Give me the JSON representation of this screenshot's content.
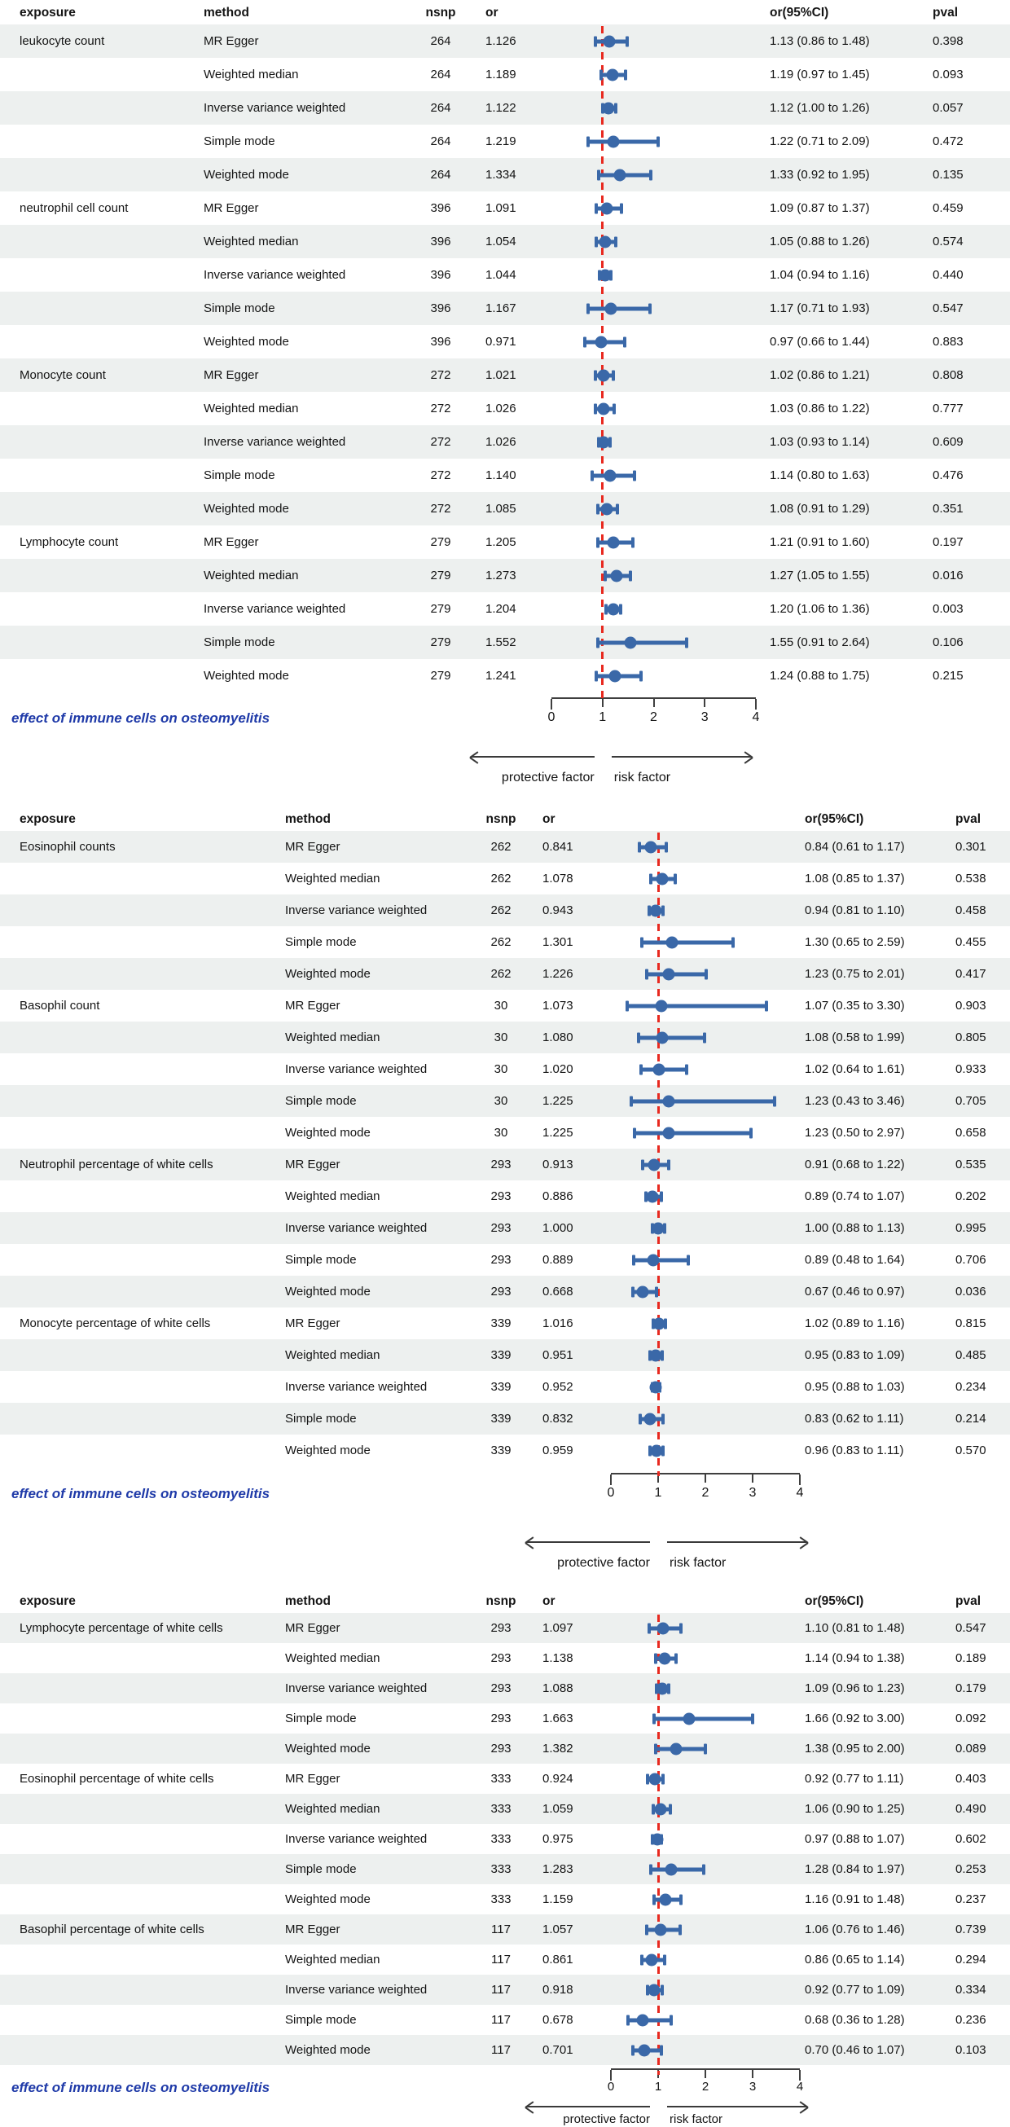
{
  "colors": {
    "marker_blue": "#3a68a8",
    "reference_line_red": "#e8291f",
    "row_stripe_gray": "#edf0ef",
    "footer_text_blue": "#1f3aa8"
  },
  "chart_data": {
    "type": "forest",
    "or_axis": {
      "min": 0,
      "max": 4,
      "reference_line": 1
    },
    "panels": [
      {
        "header": {
          "exposure": "exposure",
          "method": "method",
          "nsnp": "nsnp",
          "or": "or",
          "orci": "or(95%CI)",
          "pval": "pval"
        },
        "axis": {
          "ticks": [
            "0",
            "1",
            "2",
            "3",
            "4"
          ],
          "left_label": "protective factor",
          "right_label": "risk factor"
        },
        "footer_label": "effect of immune cells on osteomyelitis",
        "rows": [
          {
            "exposure": "leukocyte count",
            "method": "MR Egger",
            "nsnp": "264",
            "or": "1.126",
            "ci": [
              0.86,
              1.48
            ],
            "orci": "1.13 (0.86 to 1.48)",
            "pval": "0.398"
          },
          {
            "exposure": "",
            "method": "Weighted median",
            "nsnp": "264",
            "or": "1.189",
            "ci": [
              0.97,
              1.45
            ],
            "orci": "1.19 (0.97 to 1.45)",
            "pval": "0.093"
          },
          {
            "exposure": "",
            "method": "Inverse variance weighted",
            "nsnp": "264",
            "or": "1.122",
            "ci": [
              1.0,
              1.26
            ],
            "orci": "1.12 (1.00 to 1.26)",
            "pval": "0.057"
          },
          {
            "exposure": "",
            "method": "Simple mode",
            "nsnp": "264",
            "or": "1.219",
            "ci": [
              0.71,
              2.09
            ],
            "orci": "1.22 (0.71 to 2.09)",
            "pval": "0.472"
          },
          {
            "exposure": "",
            "method": "Weighted mode",
            "nsnp": "264",
            "or": "1.334",
            "ci": [
              0.92,
              1.95
            ],
            "orci": "1.33 (0.92 to 1.95)",
            "pval": "0.135"
          },
          {
            "exposure": "neutrophil cell count",
            "method": "MR Egger",
            "nsnp": "396",
            "or": "1.091",
            "ci": [
              0.87,
              1.37
            ],
            "orci": "1.09 (0.87 to 1.37)",
            "pval": "0.459"
          },
          {
            "exposure": "",
            "method": "Weighted median",
            "nsnp": "396",
            "or": "1.054",
            "ci": [
              0.88,
              1.26
            ],
            "orci": "1.05 (0.88 to 1.26)",
            "pval": "0.574"
          },
          {
            "exposure": "",
            "method": "Inverse variance weighted",
            "nsnp": "396",
            "or": "1.044",
            "ci": [
              0.94,
              1.16
            ],
            "orci": "1.04 (0.94 to 1.16)",
            "pval": "0.440"
          },
          {
            "exposure": "",
            "method": "Simple mode",
            "nsnp": "396",
            "or": "1.167",
            "ci": [
              0.71,
              1.93
            ],
            "orci": "1.17 (0.71 to 1.93)",
            "pval": "0.547"
          },
          {
            "exposure": "",
            "method": "Weighted mode",
            "nsnp": "396",
            "or": "0.971",
            "ci": [
              0.66,
              1.44
            ],
            "orci": "0.97 (0.66 to 1.44)",
            "pval": "0.883"
          },
          {
            "exposure": "Monocyte count",
            "method": "MR Egger",
            "nsnp": "272",
            "or": "1.021",
            "ci": [
              0.86,
              1.21
            ],
            "orci": "1.02 (0.86 to 1.21)",
            "pval": "0.808"
          },
          {
            "exposure": "",
            "method": "Weighted median",
            "nsnp": "272",
            "or": "1.026",
            "ci": [
              0.86,
              1.22
            ],
            "orci": "1.03 (0.86 to 1.22)",
            "pval": "0.777"
          },
          {
            "exposure": "",
            "method": "Inverse variance weighted",
            "nsnp": "272",
            "or": "1.026",
            "ci": [
              0.93,
              1.14
            ],
            "orci": "1.03 (0.93 to 1.14)",
            "pval": "0.609"
          },
          {
            "exposure": "",
            "method": "Simple mode",
            "nsnp": "272",
            "or": "1.140",
            "ci": [
              0.8,
              1.63
            ],
            "orci": "1.14 (0.80 to 1.63)",
            "pval": "0.476"
          },
          {
            "exposure": "",
            "method": "Weighted mode",
            "nsnp": "272",
            "or": "1.085",
            "ci": [
              0.91,
              1.29
            ],
            "orci": "1.08 (0.91 to 1.29)",
            "pval": "0.351"
          },
          {
            "exposure": "Lymphocyte count",
            "method": "MR Egger",
            "nsnp": "279",
            "or": "1.205",
            "ci": [
              0.91,
              1.6
            ],
            "orci": "1.21 (0.91 to 1.60)",
            "pval": "0.197"
          },
          {
            "exposure": "",
            "method": "Weighted median",
            "nsnp": "279",
            "or": "1.273",
            "ci": [
              1.05,
              1.55
            ],
            "orci": "1.27 (1.05 to 1.55)",
            "pval": "0.016"
          },
          {
            "exposure": "",
            "method": "Inverse variance weighted",
            "nsnp": "279",
            "or": "1.204",
            "ci": [
              1.06,
              1.36
            ],
            "orci": "1.20 (1.06 to 1.36)",
            "pval": "0.003"
          },
          {
            "exposure": "",
            "method": "Simple mode",
            "nsnp": "279",
            "or": "1.552",
            "ci": [
              0.91,
              2.64
            ],
            "orci": "1.55 (0.91 to 2.64)",
            "pval": "0.106"
          },
          {
            "exposure": "",
            "method": "Weighted mode",
            "nsnp": "279",
            "or": "1.241",
            "ci": [
              0.88,
              1.75
            ],
            "orci": "1.24 (0.88 to 1.75)",
            "pval": "0.215"
          }
        ]
      },
      {
        "header": {
          "exposure": "exposure",
          "method": "method",
          "nsnp": "nsnp",
          "or": "or",
          "orci": "or(95%CI)",
          "pval": "pval"
        },
        "axis": {
          "ticks": [
            "0",
            "1",
            "2",
            "3",
            "4"
          ],
          "left_label": "protective factor",
          "right_label": "risk factor"
        },
        "footer_label": "effect of immune cells on osteomyelitis",
        "rows": [
          {
            "exposure": "Eosinophil counts",
            "method": "MR Egger",
            "nsnp": "262",
            "or": "0.841",
            "ci": [
              0.61,
              1.17
            ],
            "orci": "0.84 (0.61 to 1.17)",
            "pval": "0.301"
          },
          {
            "exposure": "",
            "method": "Weighted median",
            "nsnp": "262",
            "or": "1.078",
            "ci": [
              0.85,
              1.37
            ],
            "orci": "1.08 (0.85 to 1.37)",
            "pval": "0.538"
          },
          {
            "exposure": "",
            "method": "Inverse variance weighted",
            "nsnp": "262",
            "or": "0.943",
            "ci": [
              0.81,
              1.1
            ],
            "orci": "0.94 (0.81 to 1.10)",
            "pval": "0.458"
          },
          {
            "exposure": "",
            "method": "Simple mode",
            "nsnp": "262",
            "or": "1.301",
            "ci": [
              0.65,
              2.59
            ],
            "orci": "1.30 (0.65 to 2.59)",
            "pval": "0.455"
          },
          {
            "exposure": "",
            "method": "Weighted mode",
            "nsnp": "262",
            "or": "1.226",
            "ci": [
              0.75,
              2.01
            ],
            "orci": "1.23 (0.75 to 2.01)",
            "pval": "0.417"
          },
          {
            "exposure": "Basophil count",
            "method": "MR Egger",
            "nsnp": "30",
            "or": "1.073",
            "ci": [
              0.35,
              3.3
            ],
            "orci": "1.07 (0.35 to 3.30)",
            "pval": "0.903"
          },
          {
            "exposure": "",
            "method": "Weighted median",
            "nsnp": "30",
            "or": "1.080",
            "ci": [
              0.58,
              1.99
            ],
            "orci": "1.08 (0.58 to 1.99)",
            "pval": "0.805"
          },
          {
            "exposure": "",
            "method": "Inverse variance weighted",
            "nsnp": "30",
            "or": "1.020",
            "ci": [
              0.64,
              1.61
            ],
            "orci": "1.02 (0.64 to 1.61)",
            "pval": "0.933"
          },
          {
            "exposure": "",
            "method": "Simple mode",
            "nsnp": "30",
            "or": "1.225",
            "ci": [
              0.43,
              3.46
            ],
            "orci": "1.23 (0.43 to 3.46)",
            "pval": "0.705"
          },
          {
            "exposure": "",
            "method": "Weighted mode",
            "nsnp": "30",
            "or": "1.225",
            "ci": [
              0.5,
              2.97
            ],
            "orci": "1.23 (0.50 to 2.97)",
            "pval": "0.658"
          },
          {
            "exposure": "Neutrophil percentage of white cells",
            "method": "MR Egger",
            "nsnp": "293",
            "or": "0.913",
            "ci": [
              0.68,
              1.22
            ],
            "orci": "0.91 (0.68 to 1.22)",
            "pval": "0.535"
          },
          {
            "exposure": "",
            "method": "Weighted median",
            "nsnp": "293",
            "or": "0.886",
            "ci": [
              0.74,
              1.07
            ],
            "orci": "0.89 (0.74 to 1.07)",
            "pval": "0.202"
          },
          {
            "exposure": "",
            "method": "Inverse variance weighted",
            "nsnp": "293",
            "or": "1.000",
            "ci": [
              0.88,
              1.13
            ],
            "orci": "1.00 (0.88 to 1.13)",
            "pval": "0.995"
          },
          {
            "exposure": "",
            "method": "Simple mode",
            "nsnp": "293",
            "or": "0.889",
            "ci": [
              0.48,
              1.64
            ],
            "orci": "0.89 (0.48 to 1.64)",
            "pval": "0.706"
          },
          {
            "exposure": "",
            "method": "Weighted mode",
            "nsnp": "293",
            "or": "0.668",
            "ci": [
              0.46,
              0.97
            ],
            "orci": "0.67 (0.46 to 0.97)",
            "pval": "0.036"
          },
          {
            "exposure": "Monocyte percentage of white cells",
            "method": "MR Egger",
            "nsnp": "339",
            "or": "1.016",
            "ci": [
              0.89,
              1.16
            ],
            "orci": "1.02 (0.89 to 1.16)",
            "pval": "0.815"
          },
          {
            "exposure": "",
            "method": "Weighted median",
            "nsnp": "339",
            "or": "0.951",
            "ci": [
              0.83,
              1.09
            ],
            "orci": "0.95 (0.83 to 1.09)",
            "pval": "0.485"
          },
          {
            "exposure": "",
            "method": "Inverse variance weighted",
            "nsnp": "339",
            "or": "0.952",
            "ci": [
              0.88,
              1.03
            ],
            "orci": "0.95 (0.88 to 1.03)",
            "pval": "0.234"
          },
          {
            "exposure": "",
            "method": "Simple mode",
            "nsnp": "339",
            "or": "0.832",
            "ci": [
              0.62,
              1.11
            ],
            "orci": "0.83 (0.62 to 1.11)",
            "pval": "0.214"
          },
          {
            "exposure": "",
            "method": "Weighted mode",
            "nsnp": "339",
            "or": "0.959",
            "ci": [
              0.83,
              1.11
            ],
            "orci": "0.96 (0.83 to 1.11)",
            "pval": "0.570"
          }
        ]
      },
      {
        "header": {
          "exposure": "exposure",
          "method": "method",
          "nsnp": "nsnp",
          "or": "or",
          "orci": "or(95%CI)",
          "pval": "pval"
        },
        "axis": {
          "ticks": [
            "0",
            "1",
            "2",
            "3",
            "4"
          ],
          "left_label": "protective factor",
          "right_label": "risk factor"
        },
        "footer_label": "effect of immune cells on osteomyelitis",
        "rows": [
          {
            "exposure": "Lymphocyte percentage of white cells",
            "method": "MR Egger",
            "nsnp": "293",
            "or": "1.097",
            "ci": [
              0.81,
              1.48
            ],
            "orci": "1.10 (0.81 to 1.48)",
            "pval": "0.547"
          },
          {
            "exposure": "",
            "method": "Weighted median",
            "nsnp": "293",
            "or": "1.138",
            "ci": [
              0.94,
              1.38
            ],
            "orci": "1.14 (0.94 to 1.38)",
            "pval": "0.189"
          },
          {
            "exposure": "",
            "method": "Inverse variance weighted",
            "nsnp": "293",
            "or": "1.088",
            "ci": [
              0.96,
              1.23
            ],
            "orci": "1.09 (0.96 to 1.23)",
            "pval": "0.179"
          },
          {
            "exposure": "",
            "method": "Simple mode",
            "nsnp": "293",
            "or": "1.663",
            "ci": [
              0.92,
              3.0
            ],
            "orci": "1.66 (0.92 to 3.00)",
            "pval": "0.092"
          },
          {
            "exposure": "",
            "method": "Weighted mode",
            "nsnp": "293",
            "or": "1.382",
            "ci": [
              0.95,
              2.0
            ],
            "orci": "1.38 (0.95 to 2.00)",
            "pval": "0.089"
          },
          {
            "exposure": "Eosinophil percentage of white cells",
            "method": "MR Egger",
            "nsnp": "333",
            "or": "0.924",
            "ci": [
              0.77,
              1.11
            ],
            "orci": "0.92 (0.77 to 1.11)",
            "pval": "0.403"
          },
          {
            "exposure": "",
            "method": "Weighted median",
            "nsnp": "333",
            "or": "1.059",
            "ci": [
              0.9,
              1.25
            ],
            "orci": "1.06 (0.90 to 1.25)",
            "pval": "0.490"
          },
          {
            "exposure": "",
            "method": "Inverse variance weighted",
            "nsnp": "333",
            "or": "0.975",
            "ci": [
              0.88,
              1.07
            ],
            "orci": "0.97 (0.88 to 1.07)",
            "pval": "0.602"
          },
          {
            "exposure": "",
            "method": "Simple mode",
            "nsnp": "333",
            "or": "1.283",
            "ci": [
              0.84,
              1.97
            ],
            "orci": "1.28 (0.84 to 1.97)",
            "pval": "0.253"
          },
          {
            "exposure": "",
            "method": "Weighted mode",
            "nsnp": "333",
            "or": "1.159",
            "ci": [
              0.91,
              1.48
            ],
            "orci": "1.16 (0.91 to 1.48)",
            "pval": "0.237"
          },
          {
            "exposure": "Basophil percentage of white cells",
            "method": "MR Egger",
            "nsnp": "117",
            "or": "1.057",
            "ci": [
              0.76,
              1.46
            ],
            "orci": "1.06 (0.76 to 1.46)",
            "pval": "0.739"
          },
          {
            "exposure": "",
            "method": "Weighted median",
            "nsnp": "117",
            "or": "0.861",
            "ci": [
              0.65,
              1.14
            ],
            "orci": "0.86 (0.65 to 1.14)",
            "pval": "0.294"
          },
          {
            "exposure": "",
            "method": "Inverse variance weighted",
            "nsnp": "117",
            "or": "0.918",
            "ci": [
              0.77,
              1.09
            ],
            "orci": "0.92 (0.77 to 1.09)",
            "pval": "0.334"
          },
          {
            "exposure": "",
            "method": "Simple mode",
            "nsnp": "117",
            "or": "0.678",
            "ci": [
              0.36,
              1.28
            ],
            "orci": "0.68 (0.36 to 1.28)",
            "pval": "0.236"
          },
          {
            "exposure": "",
            "method": "Weighted mode",
            "nsnp": "117",
            "or": "0.701",
            "ci": [
              0.46,
              1.07
            ],
            "orci": "0.70 (0.46 to 1.07)",
            "pval": "0.103"
          }
        ]
      }
    ]
  }
}
